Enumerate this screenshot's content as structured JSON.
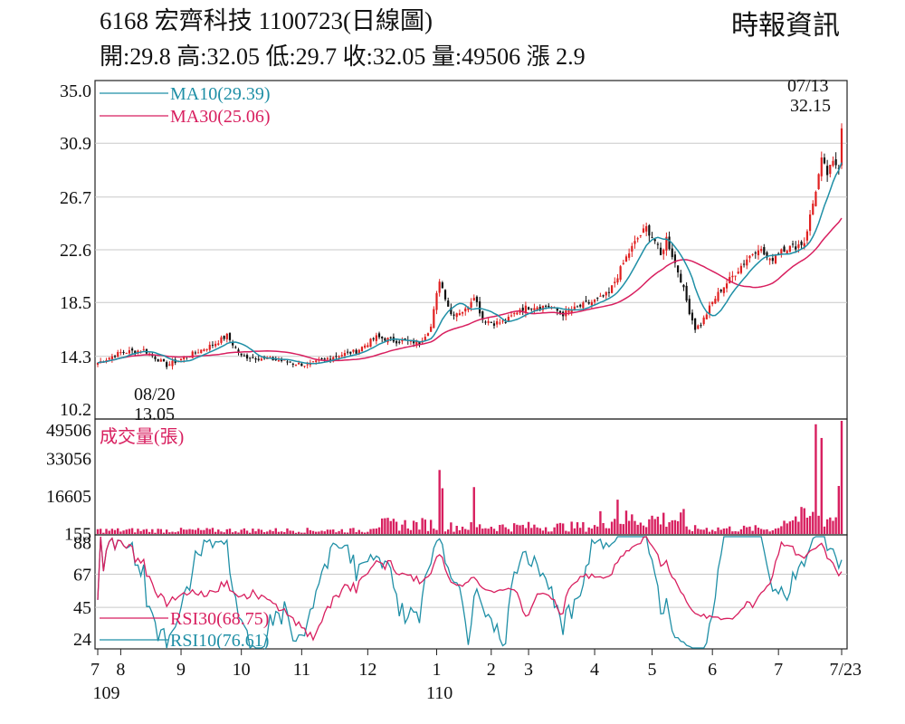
{
  "header": {
    "title": "6168  宏齊科技 1100723(日線圖)",
    "ohlc": "開:29.8 高:32.05 低:29.7 收:32.05 量:49506 漲 2.9",
    "source": "時報資訊"
  },
  "colors": {
    "ma10": "#1f8fa6",
    "ma30": "#d81f5f",
    "rsi10": "#1f8fa6",
    "rsi30": "#d81f5f",
    "volume": "#d81f5f",
    "candle_up": "#e02020",
    "candle_down": "#111111"
  },
  "chart_data": [
    {
      "type": "candlestick",
      "panel": "price",
      "yticks": [
        "35.0",
        "30.9",
        "26.7",
        "22.6",
        "18.5",
        "14.3",
        "10.2"
      ],
      "ylim": [
        10.2,
        35.0
      ],
      "legend": [
        {
          "label": "MA10(29.39)",
          "color": "#1f8fa6"
        },
        {
          "label": "MA30(25.06)",
          "color": "#d81f5f"
        }
      ],
      "annotations": [
        {
          "date": "08/20",
          "value": "13.05",
          "kind": "low"
        },
        {
          "date": "07/13",
          "value": "32.15",
          "kind": "high"
        }
      ],
      "anchors": [
        {
          "i": 0,
          "v": 13.8
        },
        {
          "i": 8,
          "v": 14.6
        },
        {
          "i": 16,
          "v": 14.8
        },
        {
          "i": 24,
          "v": 13.6
        },
        {
          "i": 33,
          "v": 14.5
        },
        {
          "i": 40,
          "v": 15.2
        },
        {
          "i": 45,
          "v": 15.9
        },
        {
          "i": 50,
          "v": 14.3
        },
        {
          "i": 55,
          "v": 14.2
        },
        {
          "i": 63,
          "v": 14.0
        },
        {
          "i": 73,
          "v": 13.6
        },
        {
          "i": 82,
          "v": 14.3
        },
        {
          "i": 90,
          "v": 14.7
        },
        {
          "i": 97,
          "v": 15.8
        },
        {
          "i": 104,
          "v": 15.5
        },
        {
          "i": 112,
          "v": 15.4
        },
        {
          "i": 116,
          "v": 16.6
        },
        {
          "i": 119,
          "v": 20.3
        },
        {
          "i": 123,
          "v": 17.6
        },
        {
          "i": 128,
          "v": 17.9
        },
        {
          "i": 131,
          "v": 19.1
        },
        {
          "i": 134,
          "v": 17.2
        },
        {
          "i": 138,
          "v": 16.9
        },
        {
          "i": 142,
          "v": 17.0
        },
        {
          "i": 147,
          "v": 18.0
        },
        {
          "i": 152,
          "v": 18.2
        },
        {
          "i": 157,
          "v": 18.2
        },
        {
          "i": 162,
          "v": 17.6
        },
        {
          "i": 168,
          "v": 18.2
        },
        {
          "i": 174,
          "v": 18.7
        },
        {
          "i": 178,
          "v": 19.2
        },
        {
          "i": 184,
          "v": 22.0
        },
        {
          "i": 188,
          "v": 23.5
        },
        {
          "i": 191,
          "v": 24.3
        },
        {
          "i": 194,
          "v": 23.3
        },
        {
          "i": 196,
          "v": 22.1
        },
        {
          "i": 198,
          "v": 23.5
        },
        {
          "i": 200,
          "v": 22.2
        },
        {
          "i": 203,
          "v": 20.3
        },
        {
          "i": 206,
          "v": 17.8
        },
        {
          "i": 208,
          "v": 16.5
        },
        {
          "i": 210,
          "v": 16.8
        },
        {
          "i": 214,
          "v": 18.5
        },
        {
          "i": 217,
          "v": 19.5
        },
        {
          "i": 222,
          "v": 20.8
        },
        {
          "i": 226,
          "v": 21.9
        },
        {
          "i": 230,
          "v": 22.8
        },
        {
          "i": 234,
          "v": 21.7
        },
        {
          "i": 238,
          "v": 22.7
        },
        {
          "i": 242,
          "v": 22.8
        },
        {
          "i": 246,
          "v": 23.2
        },
        {
          "i": 249,
          "v": 26.2
        },
        {
          "i": 252,
          "v": 29.5
        },
        {
          "i": 254,
          "v": 28.5
        },
        {
          "i": 256,
          "v": 29.3
        },
        {
          "i": 258,
          "v": 29.2
        },
        {
          "i": 259,
          "v": 32.05
        }
      ],
      "ma10_end": 29.39,
      "ma30_end": 25.06,
      "n_days": 260
    },
    {
      "type": "bar",
      "panel": "volume",
      "title": "成交量(張)",
      "yticks": [
        "49506",
        "33056",
        "16605",
        "155"
      ],
      "ylim": [
        0,
        49506
      ],
      "spikes": [
        {
          "i": 119,
          "v": 28000
        },
        {
          "i": 120,
          "v": 20000
        },
        {
          "i": 131,
          "v": 20500
        },
        {
          "i": 181,
          "v": 15000
        },
        {
          "i": 250,
          "v": 48000
        },
        {
          "i": 252,
          "v": 42000
        },
        {
          "i": 258,
          "v": 21000
        },
        {
          "i": 259,
          "v": 49506
        }
      ],
      "base_levels": [
        {
          "from": 0,
          "to": 95,
          "v": 1600
        },
        {
          "from": 95,
          "to": 118,
          "v": 4200
        },
        {
          "from": 118,
          "to": 175,
          "v": 3200
        },
        {
          "from": 175,
          "to": 205,
          "v": 6500
        },
        {
          "from": 205,
          "to": 238,
          "v": 2300
        },
        {
          "from": 238,
          "to": 260,
          "v": 7000
        }
      ]
    },
    {
      "type": "line",
      "panel": "rsi",
      "yticks": [
        "88",
        "67",
        "45",
        "24"
      ],
      "ylim": [
        18,
        92
      ],
      "series": [
        {
          "name": "RSI30(68.75)",
          "color": "#d81f5f",
          "end": 68.75
        },
        {
          "name": "RSI10(76.61)",
          "color": "#1f8fa6",
          "end": 76.61
        }
      ]
    }
  ],
  "x_axis": {
    "labels": [
      {
        "text": "7",
        "i": 0
      },
      {
        "text": "8",
        "i": 8
      },
      {
        "text": "9",
        "i": 29
      },
      {
        "text": "10",
        "i": 50
      },
      {
        "text": "11",
        "i": 71
      },
      {
        "text": "12",
        "i": 94
      },
      {
        "text": "1",
        "i": 118
      },
      {
        "text": "2",
        "i": 137
      },
      {
        "text": "3",
        "i": 150
      },
      {
        "text": "4",
        "i": 173
      },
      {
        "text": "5",
        "i": 193
      },
      {
        "text": "6",
        "i": 214
      },
      {
        "text": "7",
        "i": 237
      },
      {
        "text": "7/23",
        "i": 259
      }
    ],
    "year_labels": [
      {
        "text": "109",
        "i": 3
      },
      {
        "text": "110",
        "i": 119
      }
    ]
  }
}
